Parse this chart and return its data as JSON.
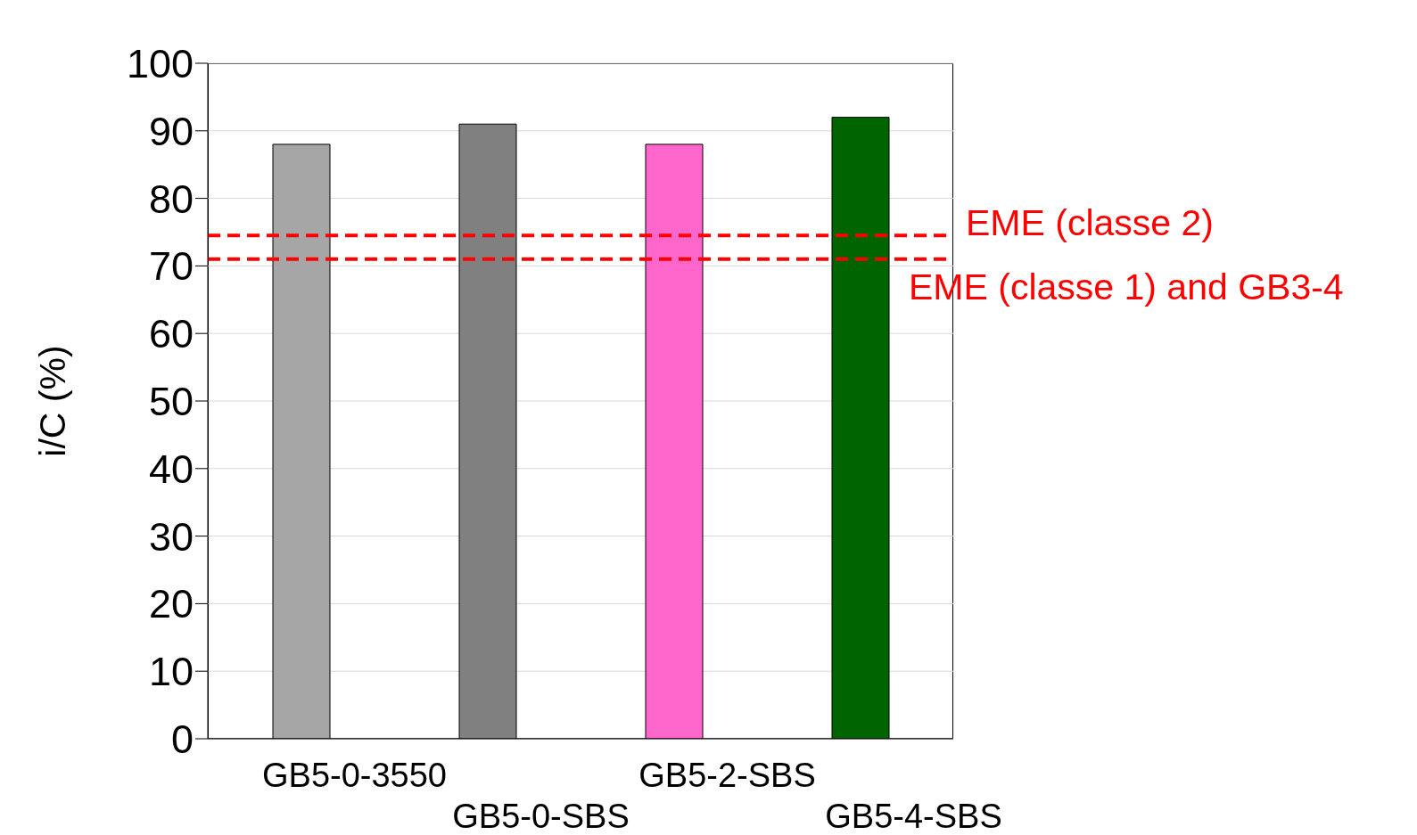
{
  "chart_data": {
    "type": "bar",
    "ylabel": "i/C (%)",
    "categories": [
      "GB5-0-3550",
      "GB5-0-SBS",
      "GB5-2-SBS",
      "GB5-4-SBS"
    ],
    "values": [
      88,
      91,
      88,
      92
    ],
    "colors": [
      "#a6a6a6",
      "#808080",
      "#ff66cc",
      "#006400"
    ],
    "ylim": [
      0,
      100
    ],
    "yticks": [
      0,
      10,
      20,
      30,
      40,
      50,
      60,
      70,
      80,
      90,
      100
    ],
    "grid": "y",
    "ref_lines": [
      {
        "axis": "y",
        "value": 74.5,
        "label": "EME (classe 2)",
        "color": "#ff0000",
        "line_style": "dashed"
      },
      {
        "axis": "y",
        "value": 71,
        "label": "EME (classe 1) and GB3-4",
        "color": "#ff0000",
        "line_style": "dashed"
      }
    ]
  }
}
